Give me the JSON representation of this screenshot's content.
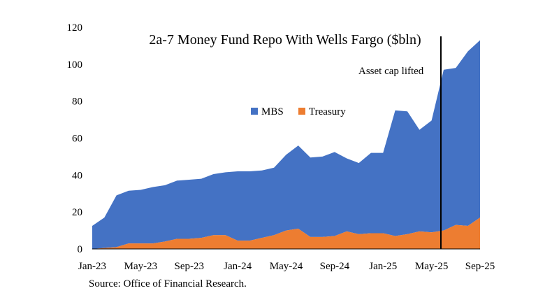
{
  "chart_data": {
    "type": "area",
    "stacked": true,
    "title": "2a-7 Money Fund Repo With Wells Fargo ($bln)",
    "source": "Source: Office of Financial Research.",
    "annotation": {
      "label": "Asset cap lifted",
      "x_month": "Jun-25"
    },
    "xlabel": "",
    "ylabel": "",
    "ylim": [
      0,
      120
    ],
    "y_ticks": [
      "0",
      "20",
      "40",
      "60",
      "80",
      "100",
      "120"
    ],
    "x_tick_labels": [
      "Jan-23",
      "May-23",
      "Sep-23",
      "Jan-24",
      "May-24",
      "Sep-24",
      "Jan-25",
      "May-25",
      "Sep-25"
    ],
    "legend_position": "center",
    "months": [
      "Jan-23",
      "Feb-23",
      "Mar-23",
      "Apr-23",
      "May-23",
      "Jun-23",
      "Jul-23",
      "Aug-23",
      "Sep-23",
      "Oct-23",
      "Nov-23",
      "Dec-23",
      "Jan-24",
      "Feb-24",
      "Mar-24",
      "Apr-24",
      "May-24",
      "Jun-24",
      "Jul-24",
      "Aug-24",
      "Sep-24",
      "Oct-24",
      "Nov-24",
      "Dec-24",
      "Jan-25",
      "Feb-25",
      "Mar-25",
      "Apr-25",
      "May-25",
      "Jun-25",
      "Jul-25",
      "Aug-25",
      "Sep-25"
    ],
    "series": [
      {
        "name": "Treasury",
        "color": "#ED7D31",
        "values": [
          0,
          0.5,
          1,
          3,
          3,
          3,
          4,
          5.5,
          5.5,
          6,
          7.5,
          7.5,
          4.5,
          4.5,
          6,
          7.5,
          10,
          11,
          6.5,
          6.5,
          7,
          9.5,
          8,
          8.5,
          8.5,
          7,
          8,
          9.5,
          9,
          10,
          13,
          12.5,
          17
        ]
      },
      {
        "name": "MBS",
        "color": "#4472C4",
        "values": [
          12.5,
          16.5,
          28,
          28.5,
          29,
          30.5,
          30.5,
          31.5,
          32,
          32,
          33,
          34,
          37.5,
          37.5,
          36.5,
          36.5,
          41,
          45,
          43,
          43.5,
          45.5,
          39.5,
          38.5,
          43.5,
          43.5,
          68,
          66.5,
          55,
          60.5,
          87,
          85,
          94.5,
          96
        ]
      }
    ]
  }
}
